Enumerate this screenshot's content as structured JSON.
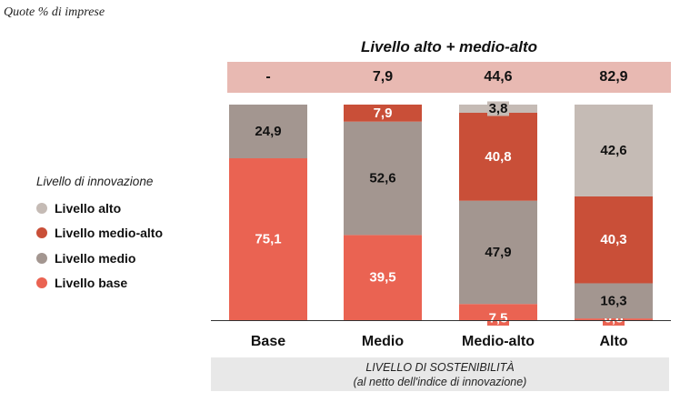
{
  "quote_label": "Quote % di imprese",
  "summary": {
    "title": "Livello alto + medio-alto",
    "values": [
      "-",
      "7,9",
      "44,6",
      "82,9"
    ]
  },
  "legend": {
    "title": "Livello di innovazione",
    "items": [
      {
        "label": "Livello alto",
        "color": "#c5bbb5"
      },
      {
        "label": "Livello medio-alto",
        "color": "#c94f38"
      },
      {
        "label": "Livello medio",
        "color": "#a39690"
      },
      {
        "label": "Livello base",
        "color": "#ea6352"
      }
    ]
  },
  "xlabel": {
    "line1": "LIVELLO DI SOSTENIBILITÀ",
    "line2": "(al netto dell'indice di innovazione)"
  },
  "chart_data": {
    "type": "bar",
    "stacked": true,
    "categories": [
      "Base",
      "Medio",
      "Medio-alto",
      "Alto"
    ],
    "series": [
      {
        "name": "Livello base",
        "color": "#ea6352",
        "values": [
          75.1,
          39.5,
          7.5,
          0.8
        ],
        "labels": [
          "75,1",
          "39,5",
          "7,5",
          "0,8"
        ]
      },
      {
        "name": "Livello medio",
        "color": "#a39690",
        "values": [
          24.9,
          52.6,
          47.9,
          16.3
        ],
        "labels": [
          "24,9",
          "52,6",
          "47,9",
          "16,3"
        ]
      },
      {
        "name": "Livello medio-alto",
        "color": "#c94f38",
        "values": [
          0,
          7.9,
          40.8,
          40.3
        ],
        "labels": [
          "",
          "7,9",
          "40,8",
          "40,3"
        ]
      },
      {
        "name": "Livello alto",
        "color": "#c5bbb5",
        "values": [
          0,
          0,
          3.8,
          42.6
        ],
        "labels": [
          "",
          "",
          "3,8",
          "42,6"
        ]
      }
    ],
    "ylim": [
      0,
      100
    ],
    "grid": false,
    "legend_position": "left"
  }
}
